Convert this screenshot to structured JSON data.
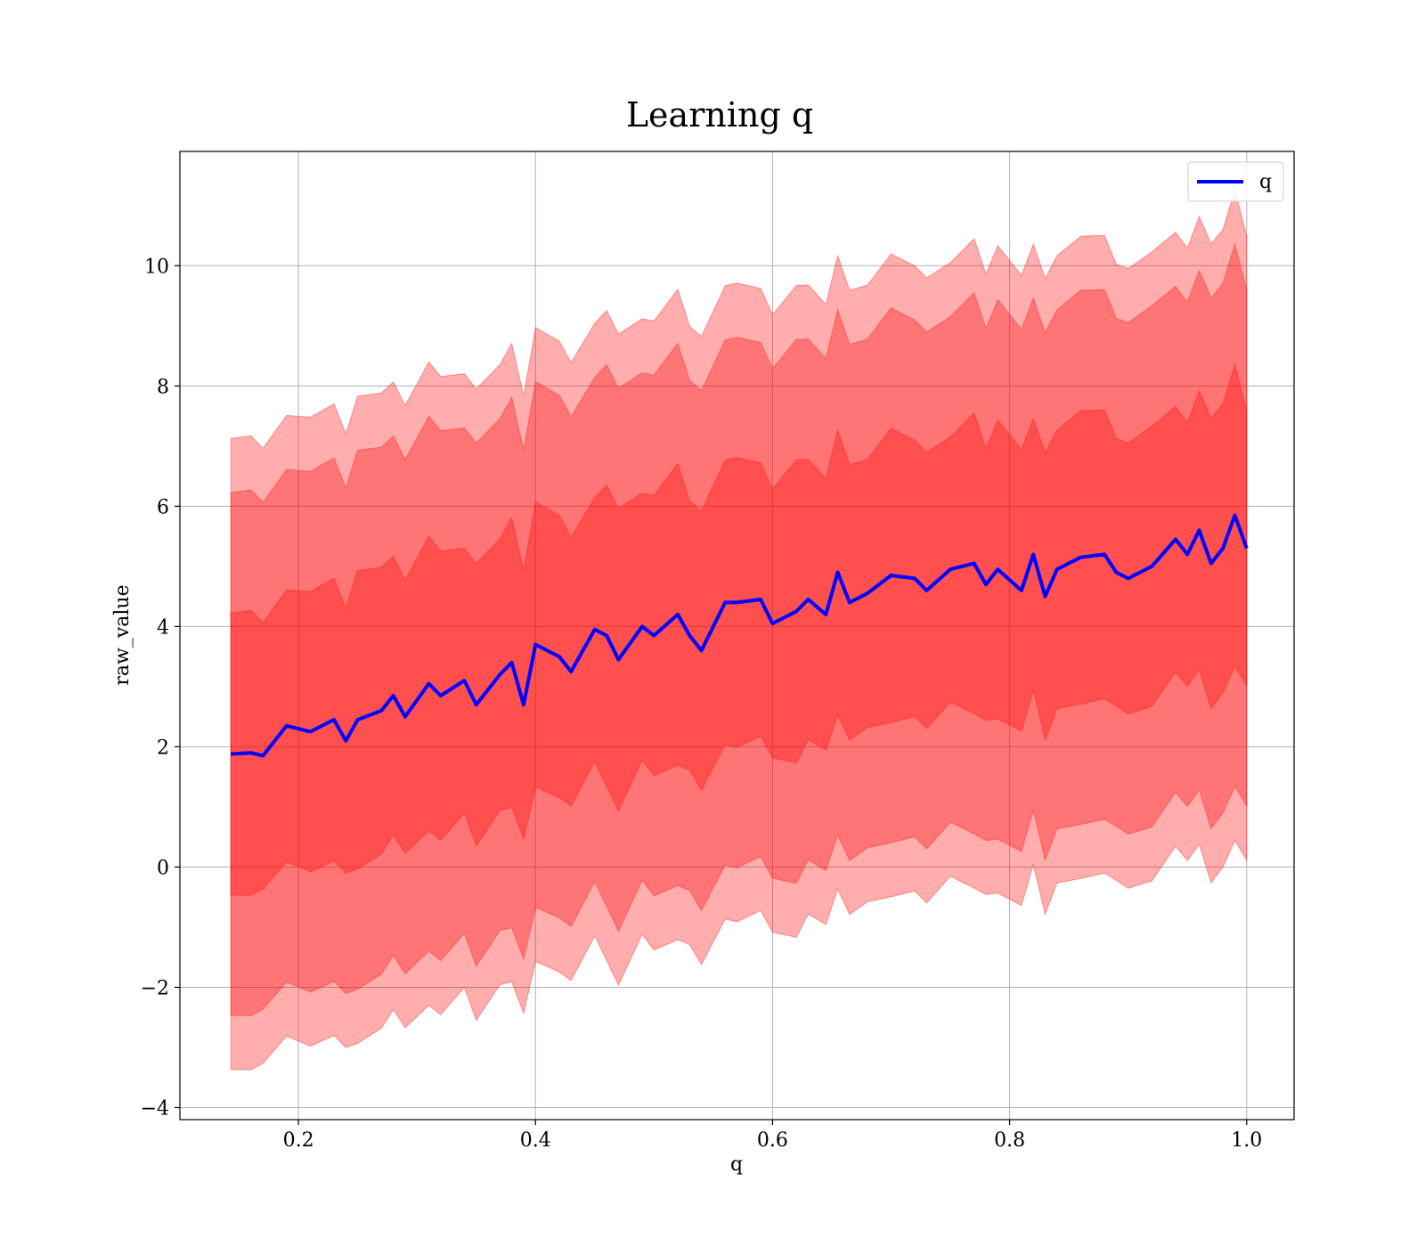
{
  "chart_data": {
    "type": "line",
    "title": "Learning q",
    "xlabel": "q",
    "ylabel": "raw_value",
    "xlim": [
      0.1,
      1.04
    ],
    "ylim": [
      -4.2,
      11.9
    ],
    "xticks": [
      0.2,
      0.4,
      0.6,
      0.8,
      1.0
    ],
    "xtick_labels": [
      "0.2",
      "0.4",
      "0.6",
      "0.8",
      "1.0"
    ],
    "yticks": [
      -4,
      -2,
      0,
      2,
      4,
      6,
      8,
      10
    ],
    "ytick_labels": [
      "−4",
      "−2",
      "0",
      "2",
      "4",
      "6",
      "8",
      "10"
    ],
    "grid": true,
    "legend": {
      "position": "upper right",
      "entries": [
        "q"
      ]
    },
    "colors": {
      "line": "#0000ff",
      "band": "#ff0000"
    },
    "series": [
      {
        "name": "q",
        "x": [
          0.143,
          0.16,
          0.17,
          0.19,
          0.21,
          0.23,
          0.24,
          0.25,
          0.27,
          0.28,
          0.29,
          0.31,
          0.32,
          0.34,
          0.35,
          0.37,
          0.38,
          0.39,
          0.4,
          0.42,
          0.43,
          0.45,
          0.46,
          0.47,
          0.49,
          0.5,
          0.52,
          0.53,
          0.54,
          0.56,
          0.57,
          0.59,
          0.6,
          0.62,
          0.63,
          0.645,
          0.655,
          0.665,
          0.68,
          0.7,
          0.72,
          0.73,
          0.75,
          0.77,
          0.78,
          0.79,
          0.81,
          0.82,
          0.83,
          0.84,
          0.86,
          0.88,
          0.89,
          0.9,
          0.92,
          0.94,
          0.95,
          0.96,
          0.97,
          0.98,
          0.99,
          1.0
        ],
        "y": [
          1.88,
          1.9,
          1.85,
          2.35,
          2.25,
          2.45,
          2.1,
          2.45,
          2.6,
          2.85,
          2.5,
          3.05,
          2.85,
          3.1,
          2.7,
          3.2,
          3.4,
          2.7,
          3.7,
          3.5,
          3.25,
          3.95,
          3.85,
          3.45,
          4.0,
          3.85,
          4.2,
          3.85,
          3.6,
          4.4,
          4.4,
          4.45,
          4.05,
          4.25,
          4.45,
          4.2,
          4.9,
          4.4,
          4.55,
          4.85,
          4.8,
          4.6,
          4.95,
          5.05,
          4.7,
          4.95,
          4.6,
          5.2,
          4.5,
          4.95,
          5.15,
          5.2,
          4.9,
          4.8,
          5.0,
          5.45,
          5.2,
          5.6,
          5.05,
          5.3,
          5.85,
          5.3
        ]
      }
    ],
    "bands": [
      {
        "sigma": 1,
        "lower": -0.47,
        "upper": 4.23
      },
      {
        "sigma": 2,
        "lower": -2.47,
        "upper": 6.23
      },
      {
        "sigma": 3,
        "lower": -3.37,
        "upper": 7.13
      }
    ]
  }
}
